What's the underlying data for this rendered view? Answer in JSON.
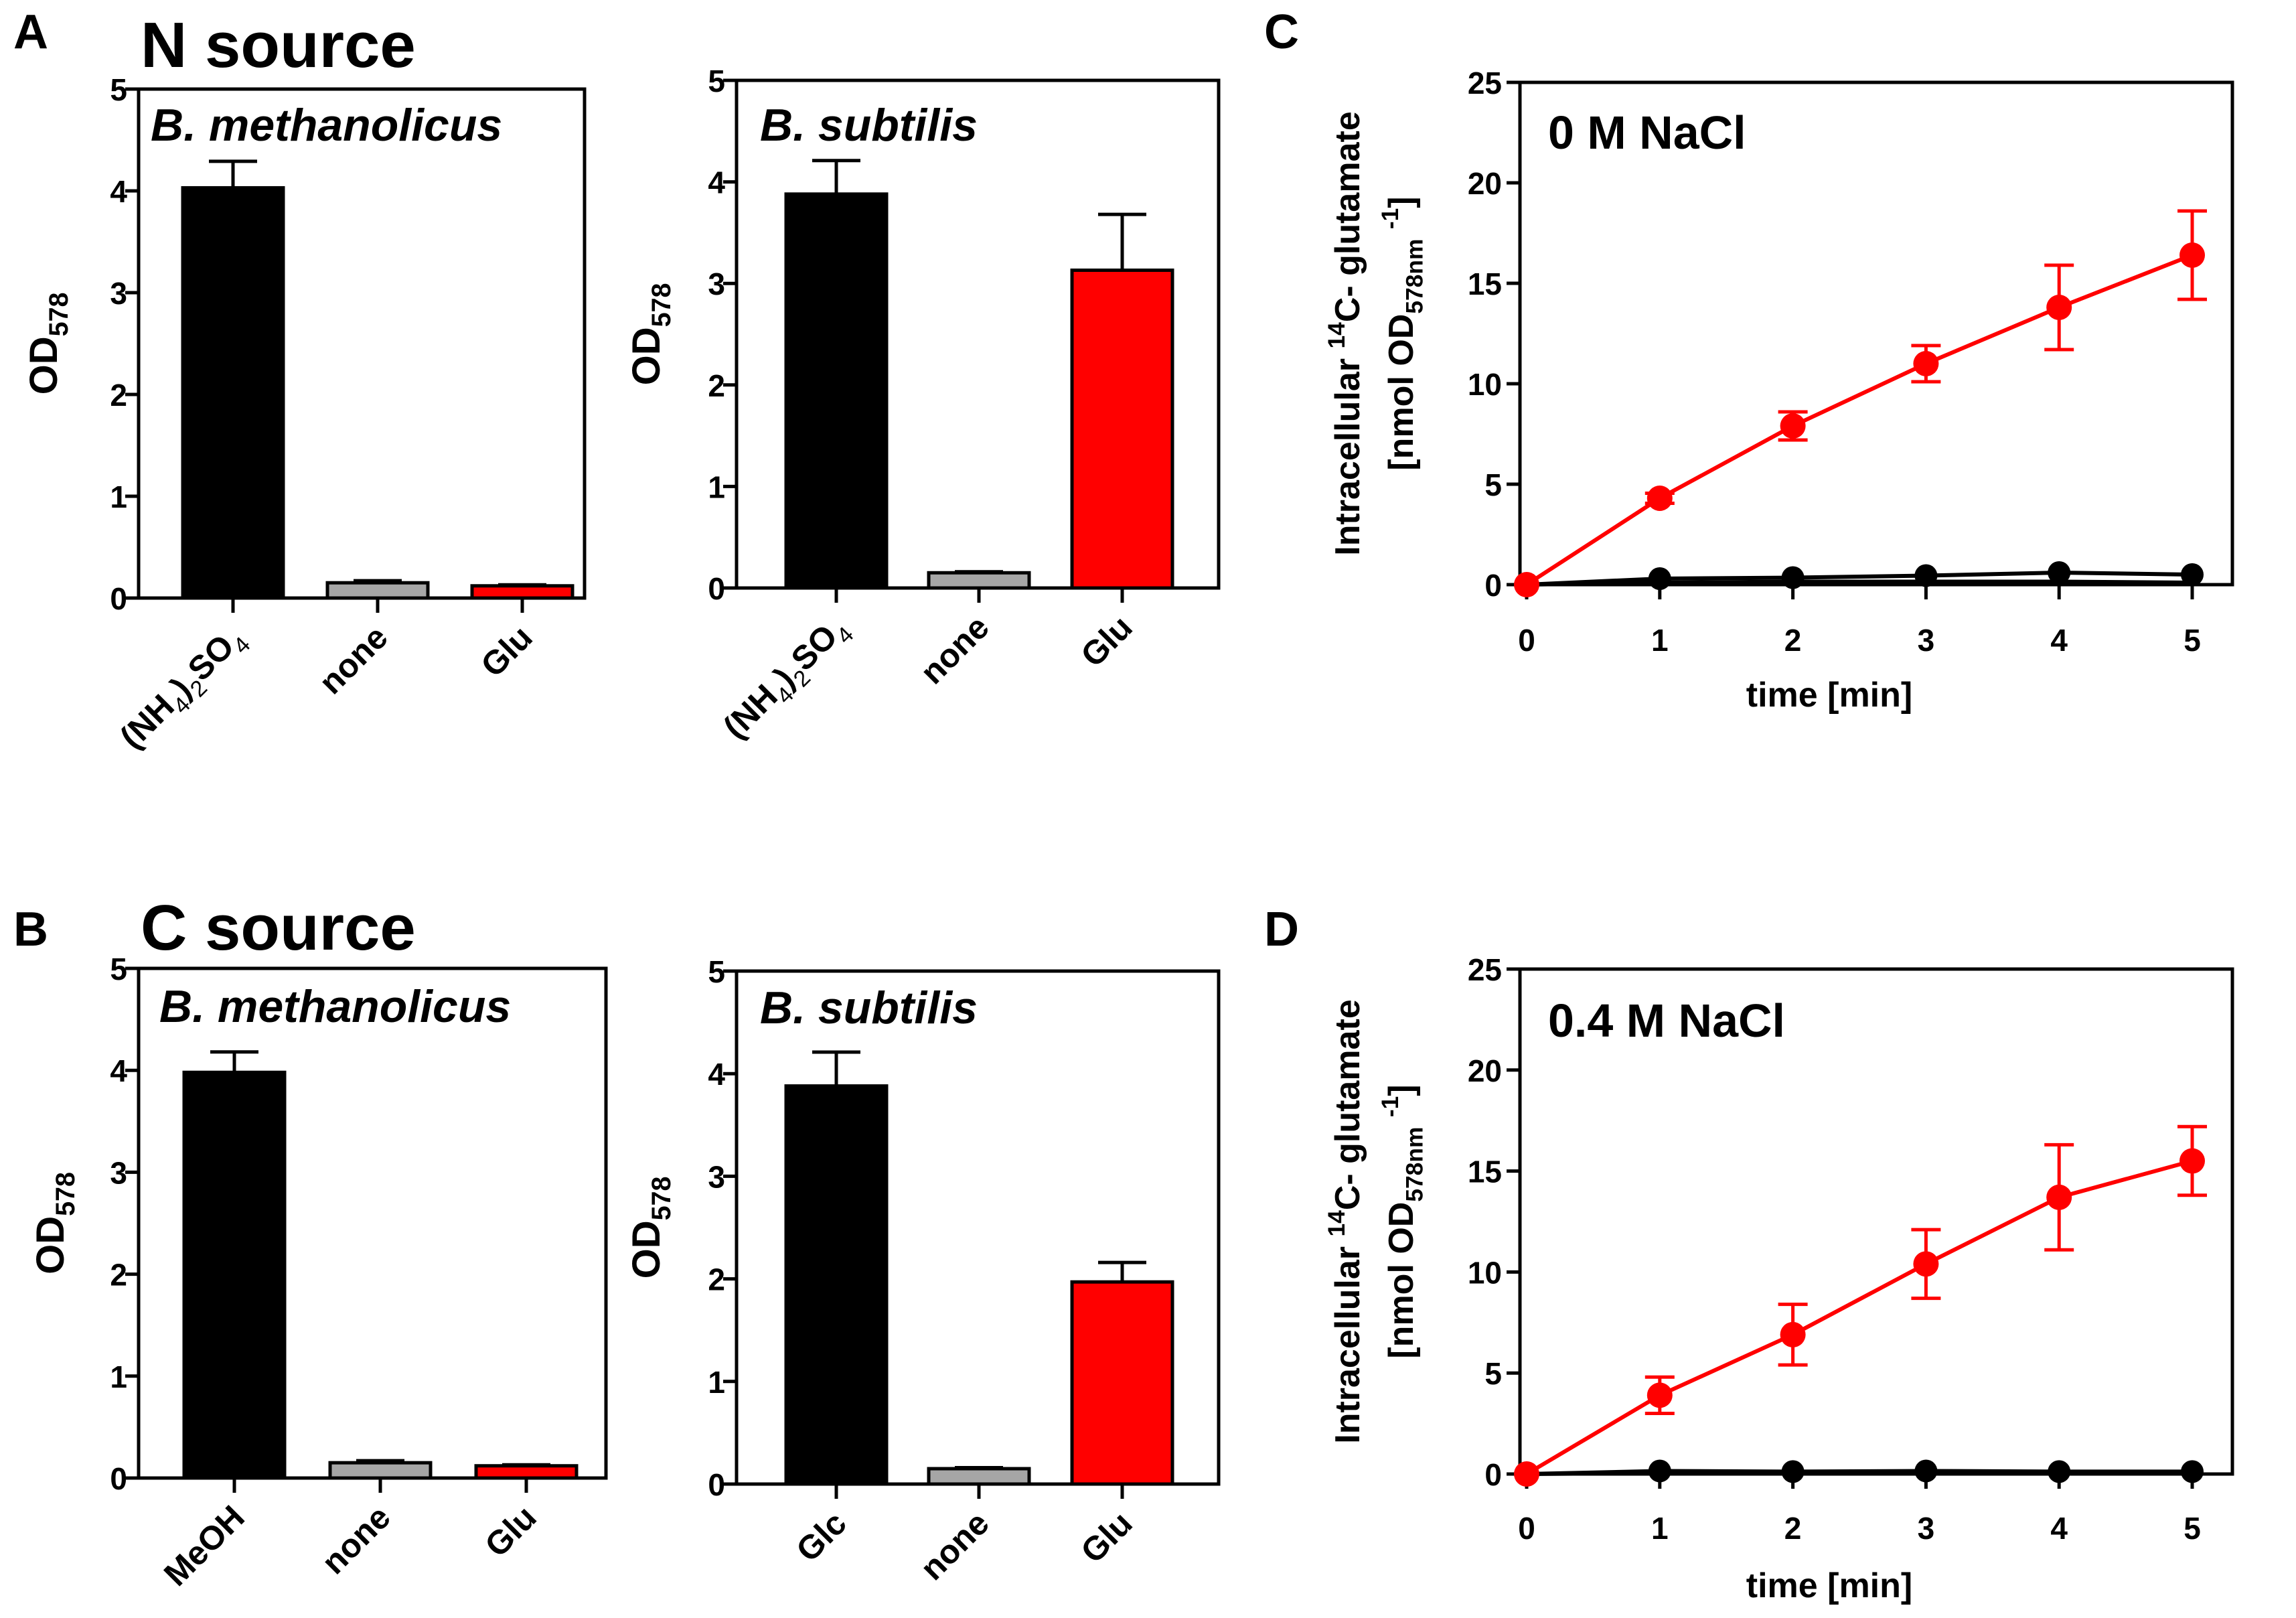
{
  "colors": {
    "black": "#000000",
    "gray": "#a6a6a6",
    "red": "#ff0000"
  },
  "chart_data": [
    {
      "id": "A1",
      "type": "bar",
      "panel_letter": "A",
      "heading": "N source",
      "title": "B. methanolicus",
      "categories": [
        "(NH4)2SO4",
        "none",
        "Glu"
      ],
      "category_parts": [
        [
          [
            "(NH",
            ""
          ],
          [
            "4",
            "sub"
          ],
          [
            ")",
            ""
          ],
          [
            "2",
            "sub"
          ],
          [
            "SO",
            ""
          ],
          [
            "4",
            "sub"
          ]
        ],
        [
          [
            "none",
            ""
          ]
        ],
        [
          [
            "Glu",
            ""
          ]
        ]
      ],
      "values": [
        4.03,
        0.15,
        0.12
      ],
      "errors": [
        0.26,
        0.02,
        0.01
      ],
      "bar_colors": [
        "black",
        "gray",
        "red"
      ],
      "ylabel_main": "OD",
      "ylabel_sub": "578",
      "ylim": [
        0,
        5
      ],
      "yticks": [
        0,
        1,
        2,
        3,
        4,
        5
      ],
      "grid": false
    },
    {
      "id": "A2",
      "type": "bar",
      "title": "B. subtilis",
      "categories": [
        "(NH4)2SO4",
        "none",
        "Glu"
      ],
      "category_parts": [
        [
          [
            "(NH",
            ""
          ],
          [
            "4",
            "sub"
          ],
          [
            ")",
            ""
          ],
          [
            "2",
            "sub"
          ],
          [
            "SO",
            ""
          ],
          [
            "4",
            "sub"
          ]
        ],
        [
          [
            "none",
            ""
          ]
        ],
        [
          [
            "Glu",
            ""
          ]
        ]
      ],
      "values": [
        3.88,
        0.15,
        3.13
      ],
      "errors": [
        0.33,
        0.01,
        0.55
      ],
      "bar_colors": [
        "black",
        "gray",
        "red"
      ],
      "ylabel_main": "OD",
      "ylabel_sub": "578",
      "ylim": [
        0,
        5
      ],
      "yticks": [
        0,
        1,
        2,
        3,
        4,
        5
      ],
      "grid": false
    },
    {
      "id": "B1",
      "type": "bar",
      "panel_letter": "B",
      "heading": "C source",
      "title": "B. methanolicus",
      "categories": [
        "MeOH",
        "none",
        "Glu"
      ],
      "category_parts": [
        [
          [
            "MeOH",
            ""
          ]
        ],
        [
          [
            "none",
            ""
          ]
        ],
        [
          [
            "Glu",
            ""
          ]
        ]
      ],
      "values": [
        3.98,
        0.15,
        0.12
      ],
      "errors": [
        0.2,
        0.02,
        0.01
      ],
      "bar_colors": [
        "black",
        "gray",
        "red"
      ],
      "ylabel_main": "OD",
      "ylabel_sub": "578",
      "ylim": [
        0,
        5
      ],
      "yticks": [
        0,
        1,
        2,
        3,
        4,
        5
      ],
      "grid": false
    },
    {
      "id": "B2",
      "type": "bar",
      "title": "B. subtilis",
      "categories": [
        "Glc",
        "none",
        "Glu"
      ],
      "category_parts": [
        [
          [
            "Glc",
            ""
          ]
        ],
        [
          [
            "none",
            ""
          ]
        ],
        [
          [
            "Glu",
            ""
          ]
        ]
      ],
      "values": [
        3.88,
        0.15,
        1.97
      ],
      "errors": [
        0.33,
        0.01,
        0.19
      ],
      "bar_colors": [
        "black",
        "gray",
        "red"
      ],
      "ylabel_main": "OD",
      "ylabel_sub": "578",
      "ylim": [
        0,
        5
      ],
      "yticks": [
        0,
        1,
        2,
        3,
        4,
        5
      ],
      "grid": false
    },
    {
      "id": "C",
      "type": "line",
      "panel_letter": "C",
      "annotation": "0 M NaCl",
      "x": [
        0,
        1,
        2,
        3,
        4,
        5
      ],
      "series": [
        {
          "name": "red",
          "color": "red",
          "values": [
            0,
            4.3,
            7.9,
            11.0,
            13.8,
            16.4
          ],
          "errors": [
            0,
            0.25,
            0.7,
            0.9,
            2.1,
            2.2
          ]
        },
        {
          "name": "black",
          "color": "black",
          "values": [
            0,
            0.3,
            0.35,
            0.45,
            0.6,
            0.5
          ],
          "errors": [
            0,
            0,
            0,
            0,
            0,
            0
          ]
        },
        {
          "name": "black-lower",
          "color": "black",
          "marker": false,
          "values": [
            0,
            0.1,
            0.15,
            0.15,
            0.15,
            0.1
          ],
          "errors": [
            0,
            0,
            0,
            0,
            0,
            0
          ]
        }
      ],
      "xlabel": "time [min]",
      "ylabel_line1_parts": [
        [
          "Intracellular ",
          ""
        ],
        [
          "14",
          "sup"
        ],
        [
          "C- glutamate",
          ""
        ]
      ],
      "ylabel_line2_parts": [
        [
          "[nmol OD",
          ""
        ],
        [
          "578nm",
          "sub"
        ],
        [
          " ",
          ""
        ],
        [
          "-1",
          "sup"
        ],
        [
          "]",
          ""
        ]
      ],
      "xlim": [
        0,
        5
      ],
      "xticks": [
        0,
        1,
        2,
        3,
        4,
        5
      ],
      "ylim": [
        0,
        25
      ],
      "yticks": [
        0,
        5,
        10,
        15,
        20,
        25
      ],
      "grid": false
    },
    {
      "id": "D",
      "type": "line",
      "panel_letter": "D",
      "annotation": "0.4 M NaCl",
      "x": [
        0,
        1,
        2,
        3,
        4,
        5
      ],
      "series": [
        {
          "name": "red",
          "color": "red",
          "values": [
            0,
            3.9,
            6.9,
            10.4,
            13.7,
            15.5
          ],
          "errors": [
            0,
            0.9,
            1.5,
            1.7,
            2.6,
            1.7
          ]
        },
        {
          "name": "black",
          "color": "black",
          "values": [
            0,
            0.15,
            0.12,
            0.15,
            0.12,
            0.12
          ],
          "errors": [
            0,
            0,
            0,
            0,
            0,
            0
          ]
        },
        {
          "name": "black-lower",
          "color": "black",
          "marker": false,
          "values": [
            0,
            0.05,
            0.05,
            0.08,
            0.05,
            0.05
          ],
          "errors": [
            0,
            0,
            0,
            0,
            0,
            0
          ]
        }
      ],
      "xlabel": "time [min]",
      "ylabel_line1_parts": [
        [
          "Intracellular ",
          ""
        ],
        [
          "14",
          "sup"
        ],
        [
          "C- glutamate",
          ""
        ]
      ],
      "ylabel_line2_parts": [
        [
          "[nmol OD",
          ""
        ],
        [
          "578nm",
          "sub"
        ],
        [
          " ",
          ""
        ],
        [
          "-1",
          "sup"
        ],
        [
          "]",
          ""
        ]
      ],
      "xlim": [
        0,
        5
      ],
      "xticks": [
        0,
        1,
        2,
        3,
        4,
        5
      ],
      "ylim": [
        0,
        25
      ],
      "yticks": [
        0,
        5,
        10,
        15,
        20,
        25
      ],
      "grid": false
    }
  ]
}
